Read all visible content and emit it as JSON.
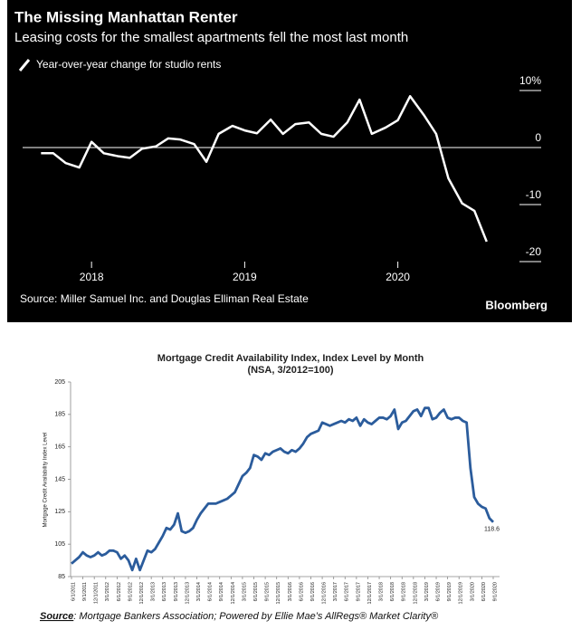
{
  "chart_data": [
    {
      "type": "line",
      "title": "The Missing Manhattan Renter",
      "subtitle": "Leasing costs for the smallest apartments fell the most last month",
      "source": "Source: Miller Samuel Inc. and Douglas Elliman Real Estate",
      "brand": "Bloomberg",
      "x": [
        2017.67,
        2017.75,
        2017.83,
        2017.92,
        2018.0,
        2018.08,
        2018.17,
        2018.25,
        2018.33,
        2018.42,
        2018.5,
        2018.58,
        2018.67,
        2018.75,
        2018.83,
        2018.92,
        2019.0,
        2019.08,
        2019.17,
        2019.25,
        2019.33,
        2019.42,
        2019.5,
        2019.58,
        2019.67,
        2019.75,
        2019.83,
        2019.92,
        2020.0,
        2020.08,
        2020.17,
        2020.25,
        2020.33,
        2020.42,
        2020.5,
        2020.58
      ],
      "series": [
        {
          "name": "Year-over-year change for studio rents",
          "color": "#ffffff",
          "values": [
            -1,
            -1,
            -2.7,
            -3.5,
            1,
            -1,
            -1.5,
            -1.8,
            -0.2,
            0.2,
            1.6,
            1.4,
            0.6,
            -2.5,
            2.4,
            3.8,
            3,
            2.5,
            4.9,
            2.4,
            4.1,
            4.4,
            2.4,
            1.9,
            4.4,
            8.4,
            2.4,
            3.5,
            4.8,
            9,
            5.7,
            2.4,
            -5.4,
            -9.8,
            -11.1,
            -16.5
          ]
        }
      ],
      "xlim": [
        2017.55,
        2020.8
      ],
      "xticks": [
        2018,
        2019,
        2020
      ],
      "ylim": [
        -21,
        12
      ],
      "yticks": [
        {
          "value": 10,
          "label": "10%"
        },
        0,
        -10,
        -20
      ]
    },
    {
      "type": "line",
      "title": "Mortgage Credit Availability Index, Index Level by Month",
      "subtitle": "(NSA, 3/2012=100)",
      "y_label": "Mortgage Credit Availability Index Level",
      "source_label": "Source",
      "source": ": Mortgage Bankers Association; Powered by Ellie Mae’s AllRegs® Market Clarity®",
      "color": "#2b5c9c",
      "categories": [
        "6/1/2011",
        null,
        null,
        "9/1/2011",
        null,
        null,
        "12/1/2011",
        null,
        null,
        "3/1/2012",
        null,
        null,
        "6/1/2012",
        null,
        null,
        "9/1/2012",
        null,
        null,
        "12/1/2012",
        null,
        null,
        "3/1/2013",
        null,
        null,
        "6/1/2013",
        null,
        null,
        "9/1/2013",
        null,
        null,
        "12/1/2013",
        null,
        null,
        "3/1/2014",
        null,
        null,
        "6/1/2014",
        null,
        null,
        "9/1/2014",
        null,
        null,
        "12/1/2014",
        null,
        null,
        "3/1/2015",
        null,
        null,
        "6/1/2015",
        null,
        null,
        "9/1/2015",
        null,
        null,
        "12/1/2015",
        null,
        null,
        "3/1/2016",
        null,
        null,
        "6/1/2016",
        null,
        null,
        "9/1/2016",
        null,
        null,
        "12/1/2016",
        null,
        null,
        "3/1/2017",
        null,
        null,
        "6/1/2017",
        null,
        null,
        "9/1/2017",
        null,
        null,
        "12/1/2017",
        null,
        null,
        "3/1/2018",
        null,
        null,
        "6/1/2018",
        null,
        null,
        "9/1/2018",
        null,
        null,
        "12/1/2018",
        null,
        null,
        "3/1/2019",
        null,
        null,
        "6/1/2019",
        null,
        null,
        "9/1/2019",
        null,
        null,
        "12/1/2019",
        null,
        null,
        "3/1/2020",
        null,
        null,
        "6/1/2020",
        null,
        null,
        "9/1/2020"
      ],
      "values": [
        93,
        95,
        97,
        100,
        98,
        97,
        98,
        100,
        98,
        99,
        101,
        101,
        100,
        96,
        98,
        95,
        89,
        96,
        89,
        95,
        101,
        100,
        102,
        106,
        110,
        115,
        114,
        117,
        124,
        113,
        112,
        113,
        115,
        120,
        124,
        127,
        130,
        130,
        130,
        131,
        132,
        133,
        135,
        137,
        142,
        147,
        149,
        152,
        160,
        159,
        157,
        161,
        160,
        162,
        163,
        164,
        162,
        161,
        163,
        162,
        164,
        167,
        171,
        173,
        174,
        175,
        180,
        179,
        178,
        179,
        180,
        181,
        180,
        182,
        181,
        183,
        178,
        182,
        180,
        179,
        181,
        183,
        183,
        182,
        184,
        188,
        176,
        180,
        181,
        184,
        187,
        188,
        184,
        189,
        189,
        182,
        183,
        186,
        188,
        183,
        182,
        183,
        183,
        181,
        180,
        152,
        134,
        130,
        128,
        127,
        121,
        118.6
      ],
      "ylim": [
        85,
        205
      ],
      "yticks": [
        85,
        105,
        125,
        145,
        165,
        185,
        205
      ]
    }
  ]
}
